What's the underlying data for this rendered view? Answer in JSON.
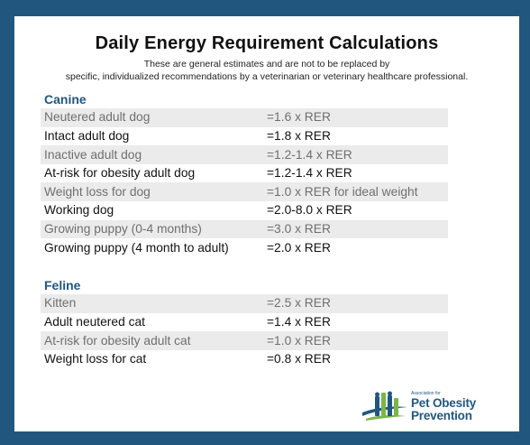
{
  "title": "Daily Energy Requirement Calculations",
  "subtitle_line1": "These are general estimates and are not to be replaced by",
  "subtitle_line2": "specific, individualized recommendations by a veterinarian or veterinary healthcare professional.",
  "canine": {
    "heading": "Canine",
    "rows": [
      {
        "label": "Neutered adult dog",
        "value": "=1.6 x RER"
      },
      {
        "label": "Intact adult dog",
        "value": "=1.8 x RER"
      },
      {
        "label": "Inactive adult dog",
        "value": "=1.2-1.4 x RER"
      },
      {
        "label": "At-risk for obesity adult dog",
        "value": "=1.2-1.4 x RER"
      },
      {
        "label": "Weight loss for dog",
        "value": "=1.0 x RER for ideal weight"
      },
      {
        "label": "Working dog",
        "value": "=2.0-8.0 x RER"
      },
      {
        "label": "Growing puppy (0-4 months)",
        "value": "=3.0 x RER"
      },
      {
        "label": "Growing puppy (4 month to adult)",
        "value": "=2.0 x RER"
      }
    ]
  },
  "feline": {
    "heading": "Feline",
    "rows": [
      {
        "label": "Kitten",
        "value": "=2.5 x RER"
      },
      {
        "label": "Adult neutered cat",
        "value": "=1.4 x RER"
      },
      {
        "label": "At-risk for obesity adult cat",
        "value": "=1.0 x RER"
      },
      {
        "label": "Weight loss for cat",
        "value": "=0.8 x RER"
      }
    ]
  },
  "logo": {
    "small_text": "Association for",
    "line1": "Pet Obesity",
    "line2": "Prevention",
    "colors": {
      "blue": "#21577f",
      "green": "#7ab648"
    }
  },
  "colors": {
    "background": "#21577f",
    "heading": "#21577f",
    "row_shade": "#ebebeb"
  }
}
